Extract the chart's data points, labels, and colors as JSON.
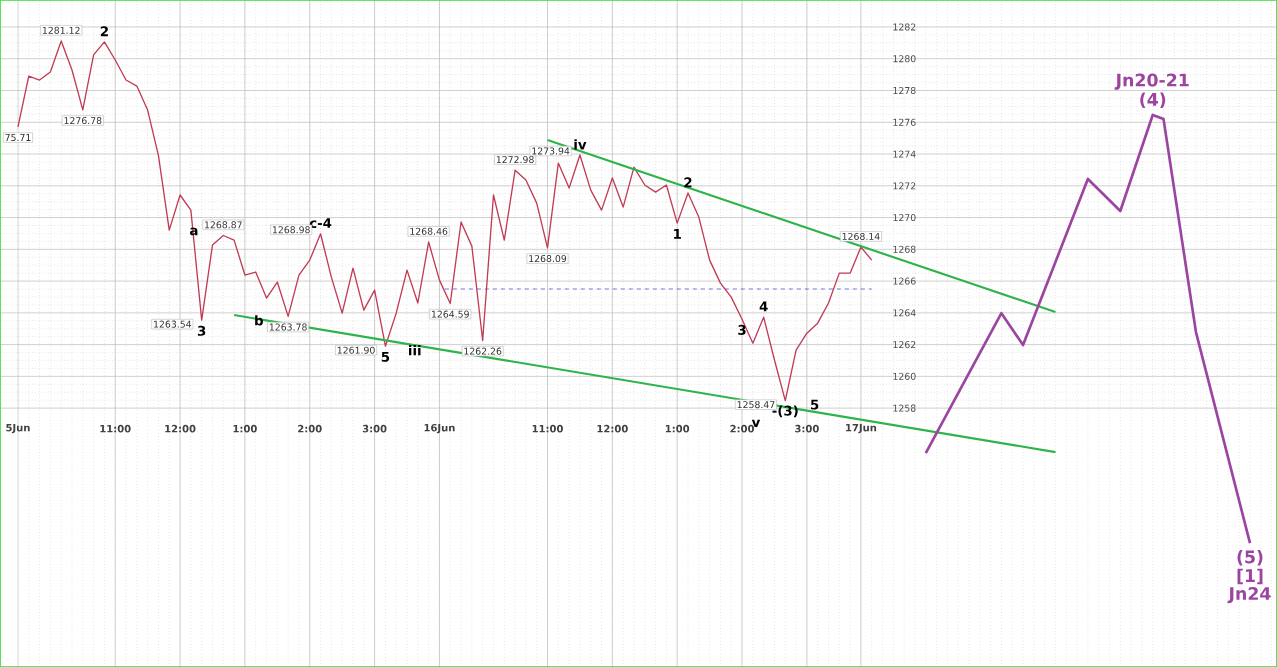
{
  "chart_data": {
    "type": "line",
    "categories": [
      "5Jun",
      null,
      null,
      null,
      null,
      null,
      null,
      null,
      null,
      "11:00",
      null,
      null,
      null,
      null,
      null,
      "12:00",
      null,
      null,
      null,
      null,
      null,
      "1:00",
      null,
      null,
      null,
      null,
      null,
      "2:00",
      null,
      null,
      null,
      null,
      null,
      "3:00",
      null,
      null,
      null,
      null,
      null,
      "16Jun",
      null,
      null,
      null,
      null,
      null,
      null,
      null,
      null,
      null,
      "11:00",
      null,
      null,
      null,
      null,
      null,
      "12:00",
      null,
      null,
      null,
      null,
      null,
      "1:00",
      null,
      null,
      null,
      null,
      null,
      "2:00",
      null,
      null,
      null,
      null,
      null,
      "3:00",
      null,
      null,
      null,
      null,
      "17Jun",
      null,
      null,
      null,
      null,
      null,
      null,
      null,
      null,
      null,
      null,
      null,
      null,
      null,
      null,
      null,
      null,
      null,
      null,
      null,
      null,
      null,
      null,
      null,
      null,
      null,
      null,
      null,
      null,
      null,
      null,
      null,
      null,
      null,
      null,
      null,
      null,
      null,
      null
    ],
    "ylim": [
      1241.7,
      1283.7
    ],
    "yticks": [
      1258,
      1260,
      1262,
      1264,
      1266,
      1268,
      1270,
      1272,
      1274,
      1276,
      1278,
      1280,
      1282
    ],
    "grid": true,
    "series": [
      {
        "color": "#c23b54",
        "values": [
          1275.71,
          1278.9,
          1278.66,
          1279.17,
          1281.12,
          1279.29,
          1276.78,
          1280.24,
          1281.06,
          1279.92,
          1278.66,
          1278.28,
          1276.77,
          1273.9,
          1269.21,
          1271.42,
          1270.47,
          1263.54,
          1268.27,
          1268.87,
          1268.58,
          1266.38,
          1266.57,
          1264.93,
          1265.94,
          1263.78,
          1266.38,
          1267.32,
          1268.98,
          1266.25,
          1263.98,
          1266.82,
          1264.17,
          1265.43,
          1261.9,
          1263.98,
          1266.69,
          1264.62,
          1268.46,
          1266.06,
          1264.59,
          1269.72,
          1268.2,
          1262.26,
          1271.42,
          1268.58,
          1272.98,
          1272.36,
          1270.91,
          1268.09,
          1273.43,
          1271.86,
          1273.94,
          1271.73,
          1270.47,
          1272.49,
          1270.66,
          1273.18,
          1272.05,
          1271.6,
          1272.05,
          1269.65,
          1271.55,
          1270.03,
          1267.32,
          1265.87,
          1264.99,
          1263.6,
          1262.09,
          1263.73,
          1261.03,
          1258.47,
          1261.65,
          1262.72,
          1263.35,
          1264.62,
          1266.5,
          1266.5,
          1268.14,
          1267.32,
          null,
          null,
          null,
          null,
          null,
          null,
          null,
          null,
          null,
          null,
          null,
          null,
          null,
          null,
          null,
          null,
          null,
          null,
          null,
          null,
          null,
          null,
          null,
          null,
          null,
          null,
          null,
          null,
          null,
          null,
          null,
          null,
          null,
          null,
          null,
          null,
          null
        ]
      },
      {
        "color": "#2db34a",
        "values": [
          null,
          null,
          null,
          null,
          null,
          null,
          null,
          null,
          null,
          null,
          null,
          null,
          null,
          null,
          null,
          null,
          null,
          null,
          null,
          null,
          null,
          null,
          null,
          null,
          null,
          null,
          null,
          null,
          null,
          null,
          null,
          null,
          null,
          null,
          null,
          null,
          null,
          null,
          null,
          null,
          null,
          null,
          null,
          null,
          null,
          null,
          null,
          null,
          null,
          1274.88,
          null,
          null,
          null,
          null,
          null,
          null,
          null,
          null,
          null,
          null,
          null,
          null,
          null,
          null,
          null,
          null,
          null,
          null,
          null,
          null,
          null,
          null,
          null,
          null,
          null,
          null,
          null,
          null,
          null,
          null,
          null,
          null,
          null,
          null,
          null,
          null,
          null,
          null,
          null,
          null,
          null,
          null,
          null,
          null,
          null,
          null,
          1264.05,
          null,
          null,
          null,
          null,
          null,
          null,
          null,
          null,
          null,
          null,
          null,
          null,
          null,
          null,
          null,
          null,
          null,
          null,
          null,
          null
        ]
      },
      {
        "color": "#2db34a",
        "values": [
          null,
          null,
          null,
          null,
          null,
          null,
          null,
          null,
          null,
          null,
          null,
          null,
          null,
          null,
          null,
          null,
          null,
          null,
          null,
          null,
          1263.86,
          null,
          null,
          null,
          null,
          null,
          null,
          null,
          null,
          null,
          null,
          null,
          null,
          null,
          null,
          null,
          null,
          null,
          null,
          null,
          null,
          null,
          null,
          null,
          null,
          null,
          null,
          null,
          null,
          null,
          null,
          null,
          null,
          null,
          null,
          null,
          null,
          null,
          null,
          null,
          null,
          null,
          null,
          null,
          null,
          null,
          null,
          null,
          null,
          null,
          null,
          null,
          null,
          null,
          null,
          null,
          null,
          null,
          null,
          null,
          null,
          null,
          null,
          null,
          null,
          null,
          null,
          null,
          null,
          null,
          null,
          null,
          null,
          null,
          null,
          null,
          1255.23,
          null,
          null,
          null,
          null,
          null,
          null,
          null,
          null,
          null,
          null,
          null,
          null,
          null,
          null,
          null,
          null,
          null,
          null,
          null,
          null
        ]
      },
      {
        "color": "#9b45a0",
        "values": [
          null,
          null,
          null,
          null,
          null,
          null,
          null,
          null,
          null,
          null,
          null,
          null,
          null,
          null,
          null,
          null,
          null,
          null,
          null,
          null,
          null,
          null,
          null,
          null,
          null,
          null,
          null,
          null,
          null,
          null,
          null,
          null,
          null,
          null,
          null,
          null,
          null,
          null,
          null,
          null,
          null,
          null,
          null,
          null,
          null,
          null,
          null,
          null,
          null,
          null,
          null,
          null,
          null,
          null,
          null,
          null,
          null,
          null,
          null,
          null,
          null,
          null,
          null,
          null,
          null,
          null,
          null,
          null,
          null,
          null,
          null,
          null,
          null,
          null,
          null,
          null,
          null,
          null,
          null,
          null,
          null,
          null,
          null,
          null,
          1255.17,
          null,
          null,
          null,
          null,
          null,
          null,
          1263.98,
          null,
          1261.97,
          null,
          null,
          null,
          null,
          null,
          1272.43,
          null,
          null,
          1270.41,
          null,
          null,
          1276.46,
          1276.2,
          null,
          null,
          1262.79,
          null,
          null,
          null,
          null,
          1249.5,
          null,
          null
        ]
      }
    ],
    "ref_lines": [
      {
        "axis": "y",
        "value": 1265.5,
        "color": "#5050d0",
        "line_style": "dashed"
      }
    ],
    "annotations": [
      {
        "text": "1281.12",
        "y": 1281.12
      },
      {
        "text": "2",
        "y": 1281.06
      },
      {
        "text": "1276.78",
        "y": 1276.78
      },
      {
        "text": "75.71",
        "y": 1275.71
      },
      {
        "text": "1268.87",
        "y": 1268.87
      },
      {
        "text": "a",
        "y": 1268.87
      },
      {
        "text": "3",
        "y": 1263.54
      },
      "1263.54",
      {
        "text": "c-4",
        "y": 1268.98
      },
      "1268.98",
      {
        "text": "1263.78",
        "y": 1263.78
      },
      {
        "text": "b",
        "y": 1263.78
      },
      {
        "text": "1268.46",
        "y": 1268.46
      },
      {
        "text": "1264.59",
        "y": 1264.59
      },
      {
        "text": "5",
        "y": 1261.9
      },
      "1261.90",
      {
        "text": "iii",
        "y": 1261.9
      },
      {
        "text": "1262.26",
        "y": 1262.26
      },
      {
        "text": "1272.98",
        "y": 1272.98
      },
      {
        "text": "1268.09",
        "y": 1268.09
      },
      {
        "text": "iv",
        "y": 1273.94
      },
      "1273.94",
      {
        "text": "2",
        "y": 1271.55
      },
      {
        "text": "1",
        "y": 1269.65
      },
      {
        "text": "1268.14",
        "y": 1268.14
      },
      {
        "text": "4",
        "y": 1263.73
      },
      {
        "text": "3",
        "y": 1263.6
      },
      {
        "text": "-(3)",
        "y": 1258.47
      },
      "1258.47",
      "5",
      {
        "text": "v",
        "y": 1258.47
      },
      {
        "text": "(4)",
        "y": 1276.46
      },
      {
        "text": "Jn20-21",
        "y": 1276.46
      },
      {
        "text": "(5)",
        "y": 1249.5
      },
      {
        "text": "[1]",
        "y": 1249.5
      },
      {
        "text": "Jn24",
        "y": 1249.5
      }
    ]
  }
}
